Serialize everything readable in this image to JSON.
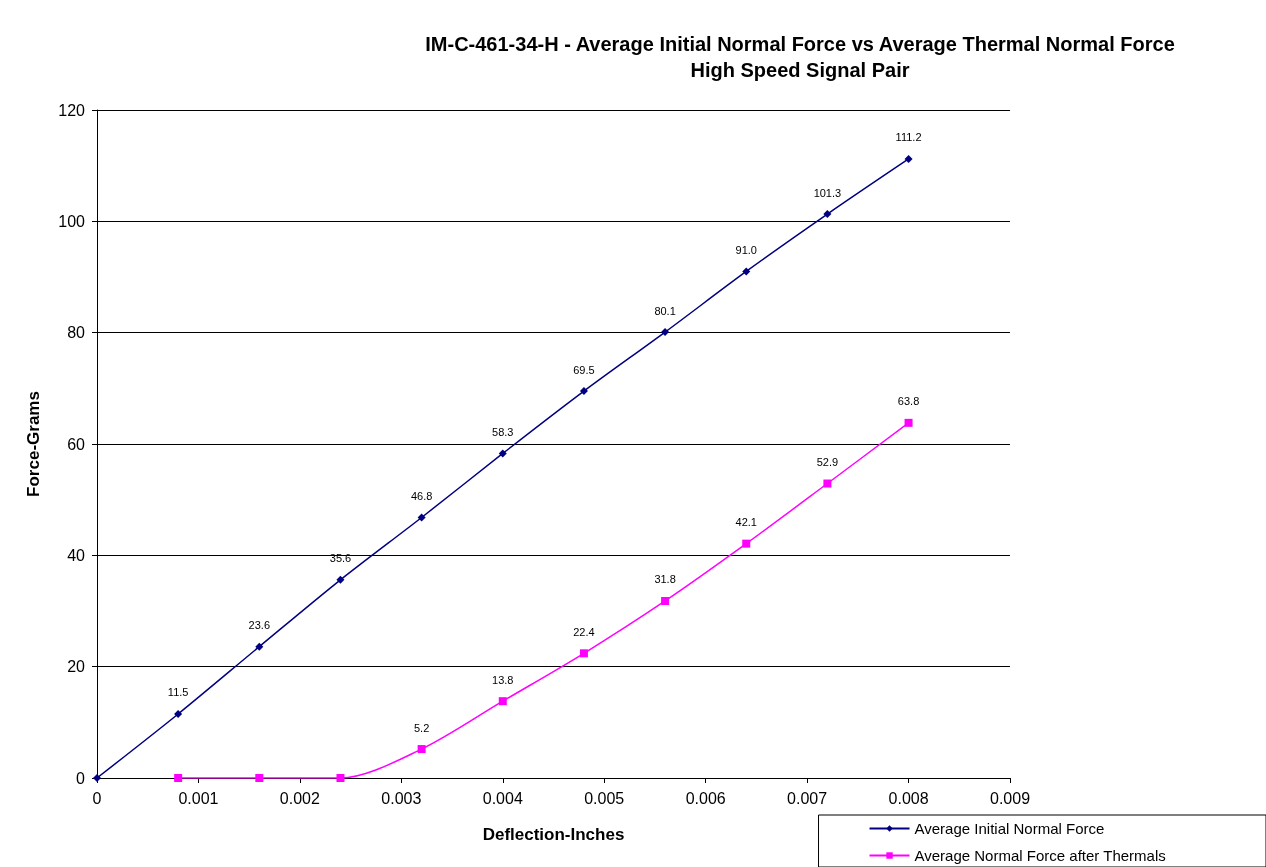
{
  "chart_data": {
    "type": "line",
    "title": "IM-C-461-34-H - Average Initial Normal Force vs Average Thermal Normal Force\nHigh Speed Signal Pair",
    "xlabel": "Deflection-Inches",
    "ylabel": "Force-Grams",
    "x": [
      0,
      0.0008,
      0.0016,
      0.0024,
      0.0032,
      0.004,
      0.0048,
      0.0056,
      0.0064,
      0.0072,
      0.008
    ],
    "series": [
      {
        "name": "Average Initial Normal Force",
        "color": "#000080",
        "marker": "diamond",
        "values": [
          0,
          11.5,
          23.6,
          35.6,
          46.8,
          58.3,
          69.5,
          80.1,
          91.0,
          101.3,
          111.2
        ],
        "value_labels": [
          null,
          "11.5",
          "23.6",
          "35.6",
          "46.8",
          "58.3",
          "69.5",
          "80.1",
          "91.0",
          "101.3",
          "111.2"
        ]
      },
      {
        "name": "Average Normal Force after Thermals",
        "color": "#ff00ff",
        "marker": "square",
        "values": [
          null,
          0,
          0,
          0,
          5.2,
          13.8,
          22.4,
          31.8,
          42.1,
          52.9,
          63.8
        ],
        "value_labels": [
          null,
          null,
          null,
          null,
          "5.2",
          "13.8",
          "22.4",
          "31.8",
          "42.1",
          "52.9",
          "63.8"
        ]
      }
    ],
    "xlim": [
      0,
      0.009
    ],
    "xticks": [
      0,
      0.001,
      0.002,
      0.003,
      0.004,
      0.005,
      0.006,
      0.007,
      0.008,
      0.009
    ],
    "ylim": [
      0,
      120
    ],
    "yticks": [
      0,
      20,
      40,
      60,
      80,
      100,
      120
    ],
    "grid": "y",
    "legend": "bottom right"
  }
}
